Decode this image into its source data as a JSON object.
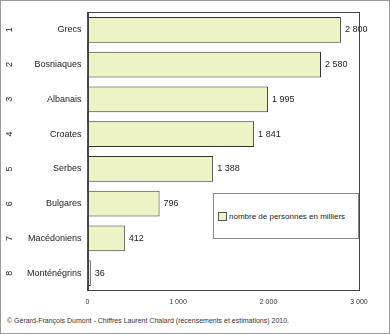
{
  "chart_data": {
    "type": "bar",
    "orientation": "horizontal",
    "categories": [
      "Grecs",
      "Bosniaques",
      "Albanais",
      "Croates",
      "Serbes",
      "Bulgares",
      "Macédoniens",
      "Monténégrins"
    ],
    "ranks": [
      1,
      2,
      3,
      4,
      5,
      6,
      7,
      8
    ],
    "series": [
      {
        "name": "nombre de personnes en milliers",
        "color": "#eef3c6",
        "values": [
          2800,
          2580,
          1995,
          1841,
          1388,
          796,
          412,
          36
        ],
        "value_labels": [
          "2 800",
          "2 580",
          "1 995",
          "1 841",
          "1 388",
          "796",
          "412",
          "36"
        ]
      }
    ],
    "xlim": [
      0,
      3000
    ],
    "xticks": [
      {
        "value": 0,
        "label": "0"
      },
      {
        "value": 1000,
        "label": "1 000"
      },
      {
        "value": 2000,
        "label": "2 000"
      },
      {
        "value": 3000,
        "label": "3 000"
      }
    ],
    "grid": false,
    "legend": "lower right",
    "data_labels": true,
    "annotations": [
      "© Gérard-François Dumont - Chiffres Laurent Chalard (recensements et estimations) 2010."
    ]
  }
}
